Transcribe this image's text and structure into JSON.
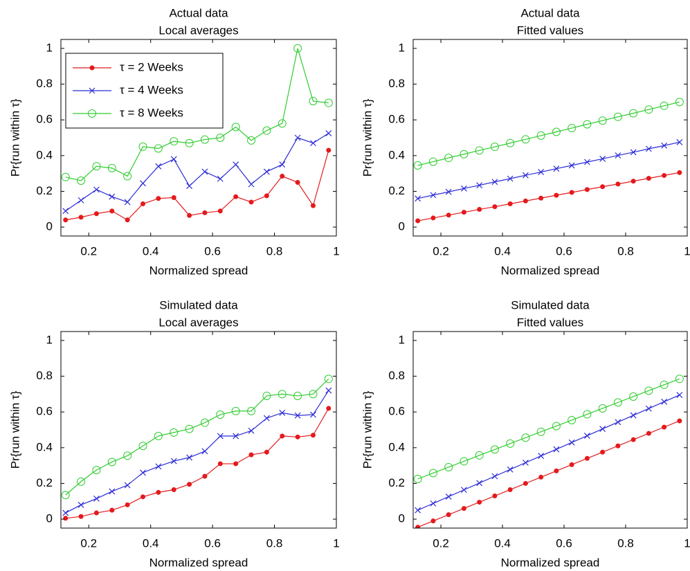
{
  "chart_data": [
    {
      "type": "line",
      "title": "Actual data",
      "subtitle": "Local averages",
      "xlabel": "Normalized spread",
      "ylabel": "Pr{run within τ}",
      "x": [
        0.125,
        0.175,
        0.225,
        0.275,
        0.325,
        0.375,
        0.425,
        0.475,
        0.525,
        0.575,
        0.625,
        0.675,
        0.725,
        0.775,
        0.825,
        0.875,
        0.925,
        0.975
      ],
      "xlim": [
        0.11,
        1.0
      ],
      "xticks": [
        0.2,
        0.4,
        0.6,
        0.8,
        1
      ],
      "ylim": [
        -0.05,
        1.05
      ],
      "yticks": [
        0,
        0.2,
        0.4,
        0.6,
        0.8,
        1
      ],
      "legend": "upper left",
      "series": [
        {
          "name": "τ = 2 Weeks",
          "color": "#e41a1c",
          "marker": "dot",
          "values": [
            0.04,
            0.055,
            0.075,
            0.09,
            0.04,
            0.13,
            0.16,
            0.165,
            0.065,
            0.08,
            0.09,
            0.17,
            0.14,
            0.175,
            0.285,
            0.25,
            0.12,
            0.43
          ]
        },
        {
          "name": "τ = 4 Weeks",
          "color": "#2b2bd6",
          "marker": "x",
          "values": [
            0.09,
            0.15,
            0.21,
            0.17,
            0.14,
            0.245,
            0.34,
            0.38,
            0.23,
            0.31,
            0.27,
            0.35,
            0.24,
            0.31,
            0.35,
            0.5,
            0.47,
            0.525
          ]
        },
        {
          "name": "τ = 8 Weeks",
          "color": "#2ecc2e",
          "marker": "circle",
          "values": [
            0.28,
            0.26,
            0.34,
            0.33,
            0.285,
            0.45,
            0.44,
            0.48,
            0.47,
            0.49,
            0.5,
            0.56,
            0.485,
            0.54,
            0.58,
            1.0,
            0.705,
            0.695
          ]
        }
      ]
    },
    {
      "type": "line",
      "title": "Actual data",
      "subtitle": "Fitted values",
      "xlabel": "Normalized spread",
      "ylabel": "Pr{run within τ}",
      "x": [
        0.125,
        0.175,
        0.225,
        0.275,
        0.325,
        0.375,
        0.425,
        0.475,
        0.525,
        0.575,
        0.625,
        0.675,
        0.725,
        0.775,
        0.825,
        0.875,
        0.925,
        0.975
      ],
      "xlim": [
        0.11,
        1.0
      ],
      "xticks": [
        0.2,
        0.4,
        0.6,
        0.8,
        1
      ],
      "ylim": [
        -0.05,
        1.05
      ],
      "yticks": [
        0,
        0.2,
        0.4,
        0.6,
        0.8,
        1
      ],
      "series": [
        {
          "color": "#e41a1c",
          "marker": "dot",
          "values": [
            0.035,
            0.051,
            0.067,
            0.083,
            0.099,
            0.114,
            0.13,
            0.146,
            0.162,
            0.178,
            0.194,
            0.21,
            0.226,
            0.241,
            0.257,
            0.273,
            0.289,
            0.305
          ]
        },
        {
          "color": "#2b2bd6",
          "marker": "x",
          "values": [
            0.16,
            0.179,
            0.197,
            0.216,
            0.234,
            0.253,
            0.271,
            0.29,
            0.308,
            0.327,
            0.345,
            0.364,
            0.382,
            0.401,
            0.419,
            0.438,
            0.456,
            0.475
          ]
        },
        {
          "color": "#2ecc2e",
          "marker": "circle",
          "values": [
            0.345,
            0.366,
            0.387,
            0.408,
            0.429,
            0.449,
            0.47,
            0.491,
            0.512,
            0.533,
            0.554,
            0.575,
            0.596,
            0.617,
            0.637,
            0.658,
            0.679,
            0.7
          ]
        }
      ]
    },
    {
      "type": "line",
      "title": "Simulated data",
      "subtitle": "Local averages",
      "xlabel": "Normalized spread",
      "ylabel": "Pr{run within τ}",
      "x": [
        0.125,
        0.175,
        0.225,
        0.275,
        0.325,
        0.375,
        0.425,
        0.475,
        0.525,
        0.575,
        0.625,
        0.675,
        0.725,
        0.775,
        0.825,
        0.875,
        0.925,
        0.975
      ],
      "xlim": [
        0.11,
        1.0
      ],
      "xticks": [
        0.2,
        0.4,
        0.6,
        0.8,
        1
      ],
      "ylim": [
        -0.05,
        1.05
      ],
      "yticks": [
        0,
        0.2,
        0.4,
        0.6,
        0.8,
        1
      ],
      "series": [
        {
          "color": "#e41a1c",
          "marker": "dot",
          "values": [
            0.005,
            0.015,
            0.035,
            0.05,
            0.08,
            0.125,
            0.15,
            0.165,
            0.195,
            0.24,
            0.31,
            0.31,
            0.36,
            0.375,
            0.465,
            0.46,
            0.47,
            0.62
          ]
        },
        {
          "color": "#2b2bd6",
          "marker": "x",
          "values": [
            0.035,
            0.08,
            0.115,
            0.155,
            0.19,
            0.26,
            0.295,
            0.325,
            0.345,
            0.38,
            0.465,
            0.465,
            0.495,
            0.565,
            0.595,
            0.58,
            0.585,
            0.72
          ]
        },
        {
          "color": "#2ecc2e",
          "marker": "circle",
          "values": [
            0.135,
            0.21,
            0.275,
            0.32,
            0.355,
            0.41,
            0.465,
            0.485,
            0.505,
            0.54,
            0.585,
            0.605,
            0.605,
            0.69,
            0.7,
            0.69,
            0.7,
            0.785
          ]
        }
      ]
    },
    {
      "type": "line",
      "title": "Simulated data",
      "subtitle": "Fitted values",
      "xlabel": "Normalized spread",
      "ylabel": "Pr{run within τ}",
      "x": [
        0.125,
        0.175,
        0.225,
        0.275,
        0.325,
        0.375,
        0.425,
        0.475,
        0.525,
        0.575,
        0.625,
        0.675,
        0.725,
        0.775,
        0.825,
        0.875,
        0.925,
        0.975
      ],
      "xlim": [
        0.11,
        1.0
      ],
      "xticks": [
        0.2,
        0.4,
        0.6,
        0.8,
        1
      ],
      "ylim": [
        -0.05,
        1.05
      ],
      "yticks": [
        0,
        0.2,
        0.4,
        0.6,
        0.8,
        1
      ],
      "series": [
        {
          "color": "#e41a1c",
          "marker": "dot",
          "values": [
            -0.045,
            -0.01,
            0.025,
            0.06,
            0.095,
            0.13,
            0.165,
            0.2,
            0.235,
            0.27,
            0.305,
            0.34,
            0.375,
            0.41,
            0.445,
            0.48,
            0.515,
            0.55
          ]
        },
        {
          "color": "#2b2bd6",
          "marker": "x",
          "values": [
            0.05,
            0.088,
            0.126,
            0.164,
            0.202,
            0.24,
            0.278,
            0.316,
            0.354,
            0.391,
            0.429,
            0.467,
            0.505,
            0.543,
            0.581,
            0.619,
            0.657,
            0.695
          ]
        },
        {
          "color": "#2ecc2e",
          "marker": "circle",
          "values": [
            0.225,
            0.258,
            0.291,
            0.324,
            0.357,
            0.39,
            0.423,
            0.456,
            0.489,
            0.521,
            0.554,
            0.587,
            0.62,
            0.653,
            0.686,
            0.719,
            0.752,
            0.785
          ]
        }
      ]
    }
  ]
}
